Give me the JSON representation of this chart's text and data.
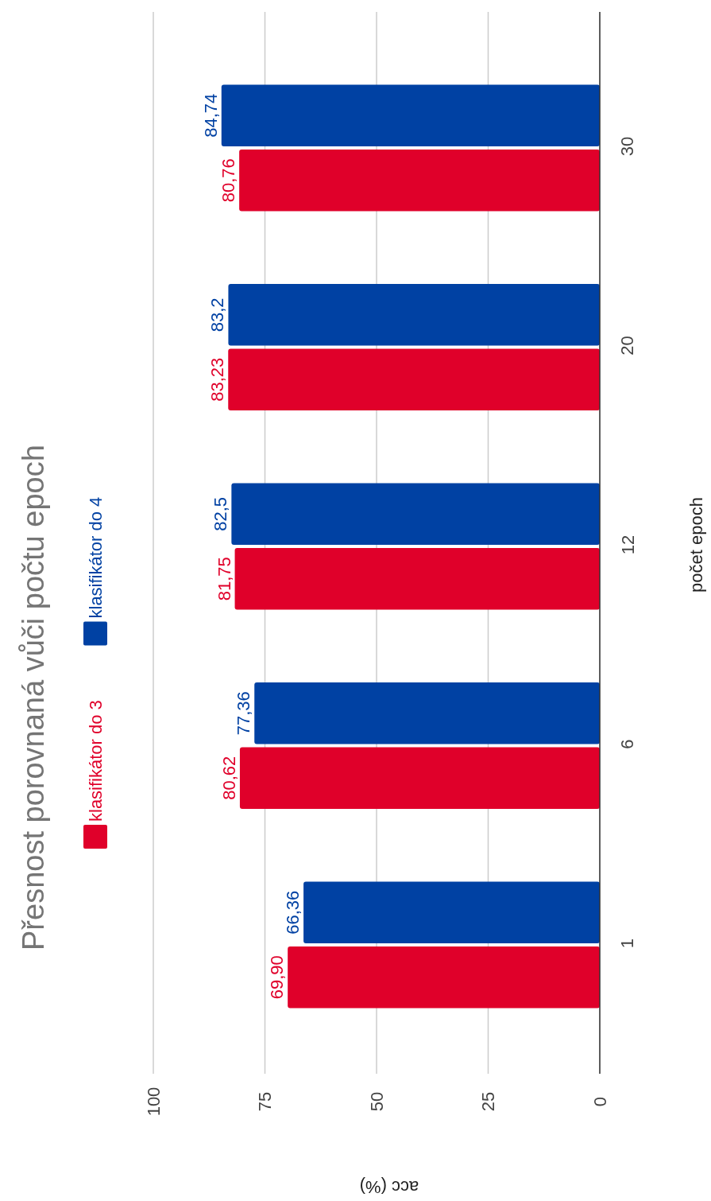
{
  "chart_data": {
    "type": "bar",
    "title": "Přesnost porovnaná vůči počtu epoch",
    "xlabel": "acc (%)",
    "ylabel": "počet epoch",
    "orientation": "horizontal",
    "categories": [
      "30",
      "20",
      "12",
      "6",
      "1"
    ],
    "series": [
      {
        "name": "klasifikátor do 3",
        "color": "#e0002a",
        "values": [
          80.76,
          83.23,
          81.75,
          80.62,
          69.9
        ],
        "value_labels": [
          "80,76",
          "83,23",
          "81,75",
          "80,62",
          "69,90"
        ]
      },
      {
        "name": "klasifikátor do 4",
        "color": "#0041a3",
        "values": [
          84.74,
          83.2,
          82.5,
          77.36,
          66.36
        ],
        "value_labels": [
          "84,74",
          "83,2",
          "82,5",
          "77,36",
          "66,36"
        ]
      }
    ],
    "xlim": [
      100,
      0
    ],
    "xticks": [
      100,
      75,
      50,
      25,
      0
    ],
    "grid": "x",
    "legend": "left"
  }
}
